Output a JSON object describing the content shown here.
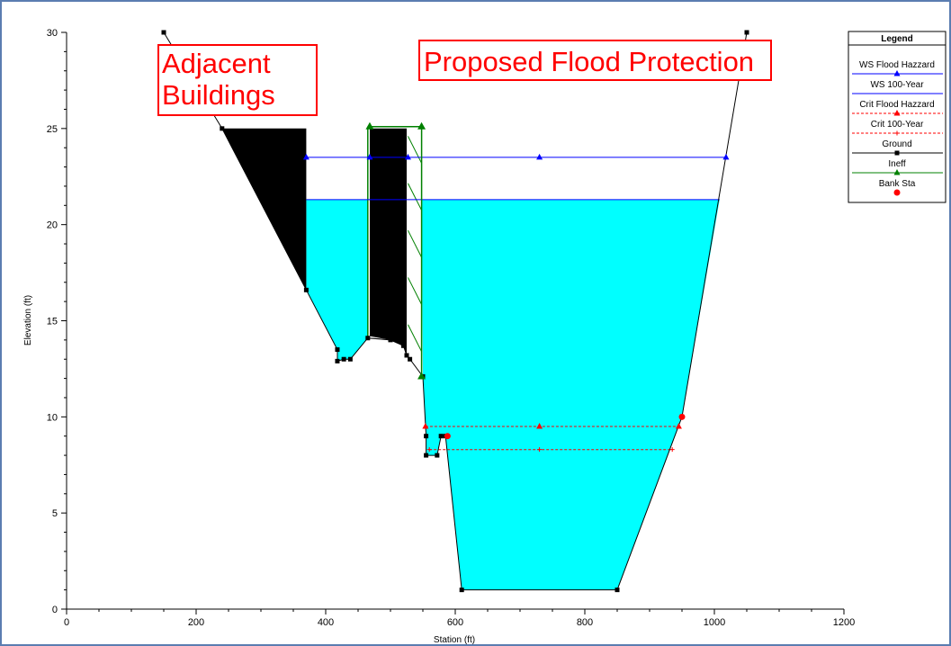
{
  "chart_data": {
    "type": "line",
    "xlabel": "Station (ft)",
    "ylabel": "Elevation (ft)",
    "xlim": [
      0,
      1200
    ],
    "ylim": [
      0,
      30
    ],
    "xticks": [
      0,
      200,
      400,
      600,
      800,
      1000,
      1200
    ],
    "yticks": [
      0,
      5,
      10,
      15,
      20,
      25,
      30
    ],
    "grid": false,
    "legend_placement": "top-right",
    "legend_title": "Legend",
    "annotations": [
      "Adjacent Buildings",
      "Proposed Flood Protection"
    ],
    "water_fill_color": "#00ffff",
    "building_fill_color": "#000000",
    "series": [
      {
        "name": "WS Flood Hazzard",
        "color": "#0000ff",
        "style": "solid",
        "marker": "triangle",
        "points": [
          [
            370,
            23.5
          ],
          [
            468,
            23.5
          ],
          [
            527,
            23.5
          ],
          [
            730,
            23.5
          ],
          [
            1018,
            23.5
          ]
        ]
      },
      {
        "name": "WS 100-Year",
        "color": "#0000ff",
        "style": "solid",
        "marker": "none",
        "points": [
          [
            370,
            21.3
          ],
          [
            1008,
            21.3
          ]
        ]
      },
      {
        "name": "Crit Flood Hazzard",
        "color": "#ff0000",
        "style": "dashed",
        "marker": "triangle",
        "points": [
          [
            554,
            9.5
          ],
          [
            730,
            9.5
          ],
          [
            945,
            9.5
          ]
        ]
      },
      {
        "name": "Crit 100-Year",
        "color": "#ff0000",
        "style": "dashed",
        "marker": "plus",
        "points": [
          [
            560,
            8.3
          ],
          [
            730,
            8.3
          ],
          [
            935,
            8.3
          ]
        ]
      },
      {
        "name": "Ground",
        "color": "#000000",
        "style": "solid",
        "marker": "square",
        "points": [
          [
            150,
            30
          ],
          [
            240,
            25
          ],
          [
            370,
            16.6
          ],
          [
            418,
            13.5
          ],
          [
            418,
            12.9
          ],
          [
            428,
            13
          ],
          [
            438,
            13
          ],
          [
            465,
            14.1
          ],
          [
            500,
            14
          ],
          [
            520,
            13.7
          ],
          [
            525,
            13.2
          ],
          [
            530,
            13
          ],
          [
            550,
            12.1
          ],
          [
            555,
            9
          ],
          [
            555,
            8
          ],
          [
            572,
            8
          ],
          [
            578,
            9
          ],
          [
            585,
            9
          ],
          [
            610,
            1
          ],
          [
            850,
            1
          ],
          [
            950,
            10
          ],
          [
            1050,
            30
          ]
        ]
      },
      {
        "name": "Ineff",
        "color": "#008000",
        "style": "solid",
        "marker": "triangle",
        "points": [
          [
            468,
            25.1
          ],
          [
            548,
            25.1
          ],
          [
            548,
            12.1
          ]
        ]
      },
      {
        "name": "Bank Sta",
        "color": "#ff0000",
        "style": "none",
        "marker": "circle",
        "points": [
          [
            588,
            9
          ],
          [
            950,
            10
          ]
        ]
      }
    ],
    "ineff_wall_left": [
      [
        465,
        14.1
      ],
      [
        465,
        25.1
      ]
    ],
    "adjacent_building_1": [
      [
        240,
        25
      ],
      [
        370,
        25
      ],
      [
        370,
        16.6
      ]
    ],
    "adjacent_building_2": [
      [
        468,
        25
      ],
      [
        525,
        25
      ],
      [
        525,
        13.2
      ],
      [
        520,
        13.7
      ],
      [
        500,
        14
      ],
      [
        468,
        14.2
      ]
    ],
    "water_ws100_region_left": [
      [
        370,
        21.3
      ],
      [
        465,
        21.3
      ],
      [
        465,
        14.1
      ],
      [
        438,
        13
      ],
      [
        428,
        13
      ],
      [
        418,
        12.9
      ],
      [
        418,
        13.5
      ],
      [
        370,
        16.6
      ]
    ],
    "water_ws100_region_main": [
      [
        548,
        21.3
      ],
      [
        1008,
        21.3
      ],
      [
        950,
        10
      ],
      [
        850,
        1
      ],
      [
        610,
        1
      ],
      [
        585,
        9
      ],
      [
        578,
        9
      ],
      [
        572,
        8
      ],
      [
        555,
        8
      ],
      [
        555,
        9
      ],
      [
        550,
        12.1
      ]
    ]
  }
}
